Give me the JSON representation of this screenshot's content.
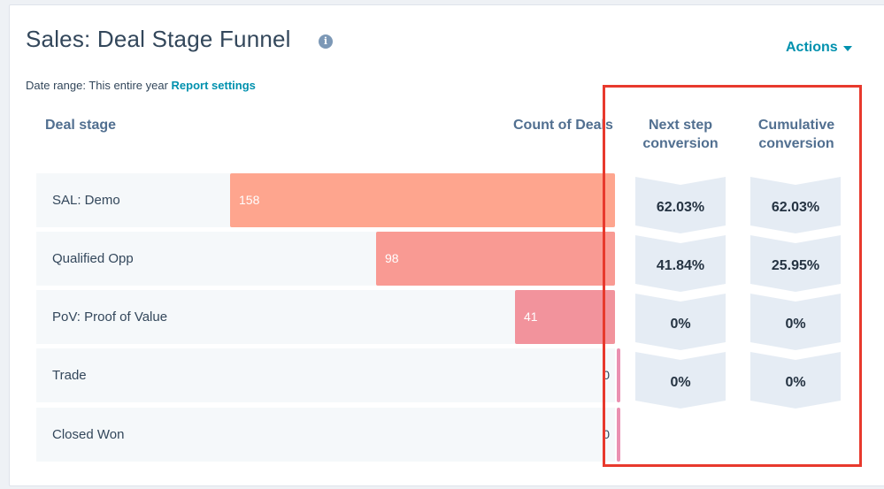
{
  "report": {
    "title": "Sales: Deal Stage Funnel",
    "actions_label": "Actions",
    "date_range_label": "Date range:",
    "date_range_value": "This entire year",
    "report_settings_link": "Report settings"
  },
  "columns": {
    "deal_stage": "Deal stage",
    "count_of_deals": "Count of Deals",
    "next_step_line1": "Next step",
    "next_step_line2": "conversion",
    "cumulative_line1": "Cumulative",
    "cumulative_line2": "conversion"
  },
  "colors": {
    "bar_sal": "#fea58e",
    "bar_qualified": "#f99a93",
    "bar_pov": "#f2939c",
    "bar_zero": "#ea90b1",
    "highlight": "#e8392d"
  },
  "chart_data": {
    "type": "bar",
    "categories": [
      "SAL: Demo",
      "Qualified Opp",
      "PoV: Proof of Value",
      "Trade",
      "Closed Won"
    ],
    "values": [
      158,
      98,
      41,
      0,
      0
    ],
    "value_labels": [
      "158",
      "98",
      "41",
      "0",
      "0"
    ],
    "next_step_conversion": [
      "62.03%",
      "41.84%",
      "0%",
      "0%"
    ],
    "cumulative_conversion": [
      "62.03%",
      "25.95%",
      "0%",
      "0%"
    ],
    "xlabel": "Count of Deals",
    "ylabel": "Deal stage",
    "xlim": [
      0,
      158
    ],
    "orientation": "horizontal-right-aligned",
    "grid": false
  }
}
